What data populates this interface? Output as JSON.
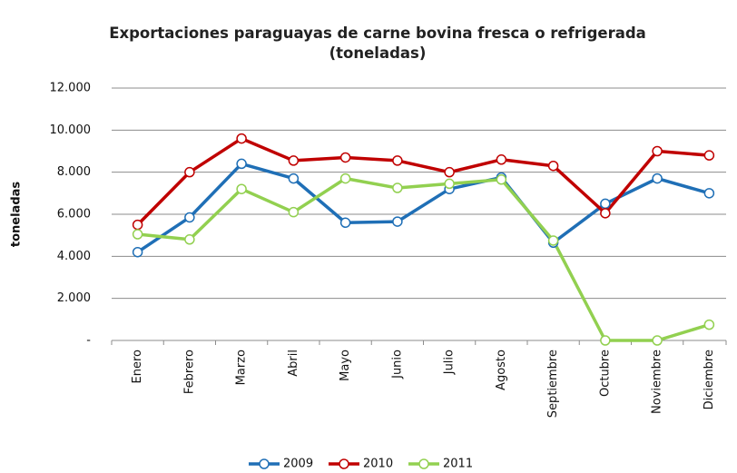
{
  "chart_data": {
    "type": "line",
    "title": "Exportaciones paraguayas de carne bovina fresca o refrigerada (toneladas)",
    "y_label": "toneladas",
    "categories": [
      "Enero",
      "Febrero",
      "Marzo",
      "Abril",
      "Mayo",
      "Junio",
      "Julio",
      "Agosto",
      "Septiembre",
      "Octubre",
      "Noviembre",
      "Diciembre"
    ],
    "series": [
      {
        "name": "2009",
        "color": "#1f6fb6",
        "values": [
          4200,
          5850,
          8400,
          7700,
          5600,
          5650,
          7200,
          7750,
          4650,
          6500,
          7700,
          7000
        ]
      },
      {
        "name": "2010",
        "color": "#c00000",
        "values": [
          5500,
          8000,
          9600,
          8550,
          8700,
          8550,
          8000,
          8600,
          8300,
          6050,
          9000,
          8800
        ]
      },
      {
        "name": "2011",
        "color": "#92d050",
        "values": [
          5050,
          4800,
          7200,
          6100,
          7700,
          7250,
          7450,
          7650,
          4750,
          0,
          0,
          750
        ]
      }
    ],
    "ylim": [
      0,
      12000
    ],
    "yticks": [
      {
        "value": 0,
        "label": "-"
      },
      {
        "value": 2000,
        "label": "2.000"
      },
      {
        "value": 4000,
        "label": "4.000"
      },
      {
        "value": 6000,
        "label": "6.000"
      },
      {
        "value": 8000,
        "label": "8.000"
      },
      {
        "value": 10000,
        "label": "10.000"
      },
      {
        "value": 12000,
        "label": "12.000"
      }
    ],
    "grid": true,
    "legend": "bottom"
  }
}
